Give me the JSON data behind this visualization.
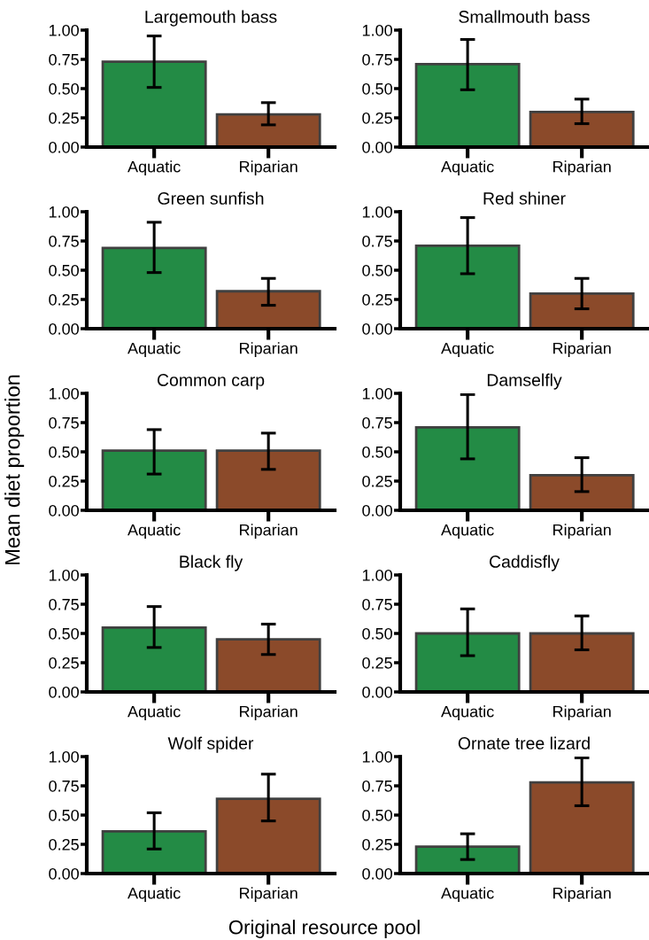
{
  "chart_data": [
    {
      "type": "bar",
      "title": "Largemouth bass",
      "categories": [
        "Aquatic",
        "Riparian"
      ],
      "values": [
        0.73,
        0.28
      ],
      "colors": [
        "#238b45",
        "#8b4a2a"
      ],
      "errors": [
        [
          0.51,
          0.95
        ],
        [
          0.19,
          0.38
        ]
      ],
      "ylim": [
        0,
        1
      ],
      "yticks": [
        {
          "value": 0,
          "label": "0.00"
        },
        {
          "value": 0.25,
          "label": "0.25"
        },
        {
          "value": 0.5,
          "label": "0.50"
        },
        {
          "value": 0.75,
          "label": "0.75"
        },
        {
          "value": 1,
          "label": "1.00"
        }
      ]
    },
    {
      "type": "bar",
      "title": "Smallmouth bass",
      "categories": [
        "Aquatic",
        "Riparian"
      ],
      "values": [
        0.71,
        0.3
      ],
      "colors": [
        "#238b45",
        "#8b4a2a"
      ],
      "errors": [
        [
          0.49,
          0.92
        ],
        [
          0.2,
          0.41
        ]
      ],
      "ylim": [
        0,
        1
      ],
      "yticks": [
        {
          "value": 0,
          "label": "0.00"
        },
        {
          "value": 0.25,
          "label": "0.25"
        },
        {
          "value": 0.5,
          "label": "0.50"
        },
        {
          "value": 0.75,
          "label": "0.75"
        },
        {
          "value": 1,
          "label": "1.00"
        }
      ]
    },
    {
      "type": "bar",
      "title": "Green sunfish",
      "categories": [
        "Aquatic",
        "Riparian"
      ],
      "values": [
        0.69,
        0.32
      ],
      "colors": [
        "#238b45",
        "#8b4a2a"
      ],
      "errors": [
        [
          0.48,
          0.91
        ],
        [
          0.2,
          0.43
        ]
      ],
      "ylim": [
        0,
        1
      ],
      "yticks": [
        {
          "value": 0,
          "label": "0.00"
        },
        {
          "value": 0.25,
          "label": "0.25"
        },
        {
          "value": 0.5,
          "label": "0.50"
        },
        {
          "value": 0.75,
          "label": "0.75"
        },
        {
          "value": 1,
          "label": "1.00"
        }
      ]
    },
    {
      "type": "bar",
      "title": "Red shiner",
      "categories": [
        "Aquatic",
        "Riparian"
      ],
      "values": [
        0.71,
        0.3
      ],
      "colors": [
        "#238b45",
        "#8b4a2a"
      ],
      "errors": [
        [
          0.47,
          0.95
        ],
        [
          0.17,
          0.43
        ]
      ],
      "ylim": [
        0,
        1
      ],
      "yticks": [
        {
          "value": 0,
          "label": "0.00"
        },
        {
          "value": 0.25,
          "label": "0.25"
        },
        {
          "value": 0.5,
          "label": "0.50"
        },
        {
          "value": 0.75,
          "label": "0.75"
        },
        {
          "value": 1,
          "label": "1.00"
        }
      ]
    },
    {
      "type": "bar",
      "title": "Common carp",
      "ylabel": "Mean diet proportion",
      "categories": [
        "Aquatic",
        "Riparian"
      ],
      "values": [
        0.51,
        0.51
      ],
      "colors": [
        "#238b45",
        "#8b4a2a"
      ],
      "errors": [
        [
          0.31,
          0.69
        ],
        [
          0.35,
          0.66
        ]
      ],
      "ylim": [
        0,
        1
      ],
      "yticks": [
        {
          "value": 0,
          "label": "0.00"
        },
        {
          "value": 0.25,
          "label": "0.25"
        },
        {
          "value": 0.5,
          "label": "0.50"
        },
        {
          "value": 0.75,
          "label": "0.75"
        },
        {
          "value": 1,
          "label": "1.00"
        }
      ]
    },
    {
      "type": "bar",
      "title": "Damselfly",
      "categories": [
        "Aquatic",
        "Riparian"
      ],
      "values": [
        0.71,
        0.3
      ],
      "colors": [
        "#238b45",
        "#8b4a2a"
      ],
      "errors": [
        [
          0.44,
          0.99
        ],
        [
          0.16,
          0.45
        ]
      ],
      "ylim": [
        0,
        1
      ],
      "yticks": [
        {
          "value": 0,
          "label": "0.00"
        },
        {
          "value": 0.25,
          "label": "0.25"
        },
        {
          "value": 0.5,
          "label": "0.50"
        },
        {
          "value": 0.75,
          "label": "0.75"
        },
        {
          "value": 1,
          "label": "1.00"
        }
      ]
    },
    {
      "type": "bar",
      "title": "Black fly",
      "categories": [
        "Aquatic",
        "Riparian"
      ],
      "values": [
        0.55,
        0.45
      ],
      "colors": [
        "#238b45",
        "#8b4a2a"
      ],
      "errors": [
        [
          0.38,
          0.73
        ],
        [
          0.32,
          0.58
        ]
      ],
      "ylim": [
        0,
        1
      ],
      "yticks": [
        {
          "value": 0,
          "label": "0.00"
        },
        {
          "value": 0.25,
          "label": "0.25"
        },
        {
          "value": 0.5,
          "label": "0.50"
        },
        {
          "value": 0.75,
          "label": "0.75"
        },
        {
          "value": 1,
          "label": "1.00"
        }
      ]
    },
    {
      "type": "bar",
      "title": "Caddisfly",
      "categories": [
        "Aquatic",
        "Riparian"
      ],
      "values": [
        0.5,
        0.5
      ],
      "colors": [
        "#238b45",
        "#8b4a2a"
      ],
      "errors": [
        [
          0.31,
          0.71
        ],
        [
          0.36,
          0.65
        ]
      ],
      "ylim": [
        0,
        1
      ],
      "yticks": [
        {
          "value": 0,
          "label": "0.00"
        },
        {
          "value": 0.25,
          "label": "0.25"
        },
        {
          "value": 0.5,
          "label": "0.50"
        },
        {
          "value": 0.75,
          "label": "0.75"
        },
        {
          "value": 1,
          "label": "1.00"
        }
      ]
    },
    {
      "type": "bar",
      "title": "Wolf spider",
      "xlabel": "Original resource pool",
      "categories": [
        "Aquatic",
        "Riparian"
      ],
      "values": [
        0.36,
        0.64
      ],
      "colors": [
        "#238b45",
        "#8b4a2a"
      ],
      "errors": [
        [
          0.21,
          0.52
        ],
        [
          0.45,
          0.85
        ]
      ],
      "ylim": [
        0,
        1
      ],
      "yticks": [
        {
          "value": 0,
          "label": "0.00"
        },
        {
          "value": 0.25,
          "label": "0.25"
        },
        {
          "value": 0.5,
          "label": "0.50"
        },
        {
          "value": 0.75,
          "label": "0.75"
        },
        {
          "value": 1,
          "label": "1.00"
        }
      ]
    },
    {
      "type": "bar",
      "title": "Ornate tree lizard",
      "categories": [
        "Aquatic",
        "Riparian"
      ],
      "values": [
        0.23,
        0.78
      ],
      "colors": [
        "#238b45",
        "#8b4a2a"
      ],
      "errors": [
        [
          0.12,
          0.34
        ],
        [
          0.58,
          0.99
        ]
      ],
      "ylim": [
        0,
        1
      ],
      "yticks": [
        {
          "value": 0,
          "label": "0.00"
        },
        {
          "value": 0.25,
          "label": "0.25"
        },
        {
          "value": 0.5,
          "label": "0.50"
        },
        {
          "value": 0.75,
          "label": "0.75"
        },
        {
          "value": 1,
          "label": "1.00"
        }
      ]
    }
  ]
}
